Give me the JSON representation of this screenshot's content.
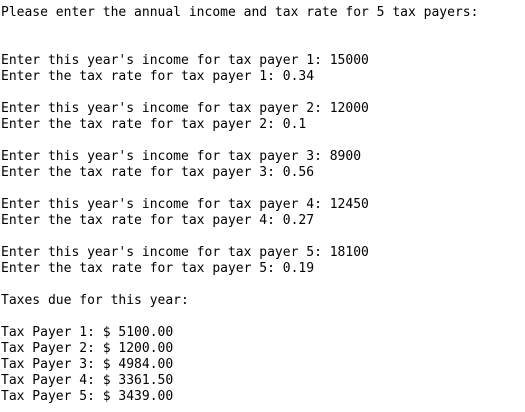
{
  "console": {
    "prompt": "Please enter the annual income and tax rate for 5 tax payers:",
    "payers": [
      {
        "income": "Enter this year's income for tax payer 1: 15000",
        "rate": "Enter the tax rate for tax payer 1: 0.34"
      },
      {
        "income": "Enter this year's income for tax payer 2: 12000",
        "rate": "Enter the tax rate for tax payer 2: 0.1"
      },
      {
        "income": "Enter this year's income for tax payer 3: 8900",
        "rate": "Enter the tax rate for tax payer 3: 0.56"
      },
      {
        "income": "Enter this year's income for tax payer 4: 12450",
        "rate": "Enter the tax rate for tax payer 4: 0.27"
      },
      {
        "income": "Enter this year's income for tax payer 5: 18100",
        "rate": "Enter the tax rate for tax payer 5: 0.19"
      }
    ],
    "summary_title": "Taxes due for this year:",
    "results": [
      "Tax Payer 1: $ 5100.00",
      "Tax Payer 2: $ 1200.00",
      "Tax Payer 3: $ 4984.00",
      "Tax Payer 4: $ 3361.50",
      "Tax Payer 5: $ 3439.00"
    ]
  }
}
